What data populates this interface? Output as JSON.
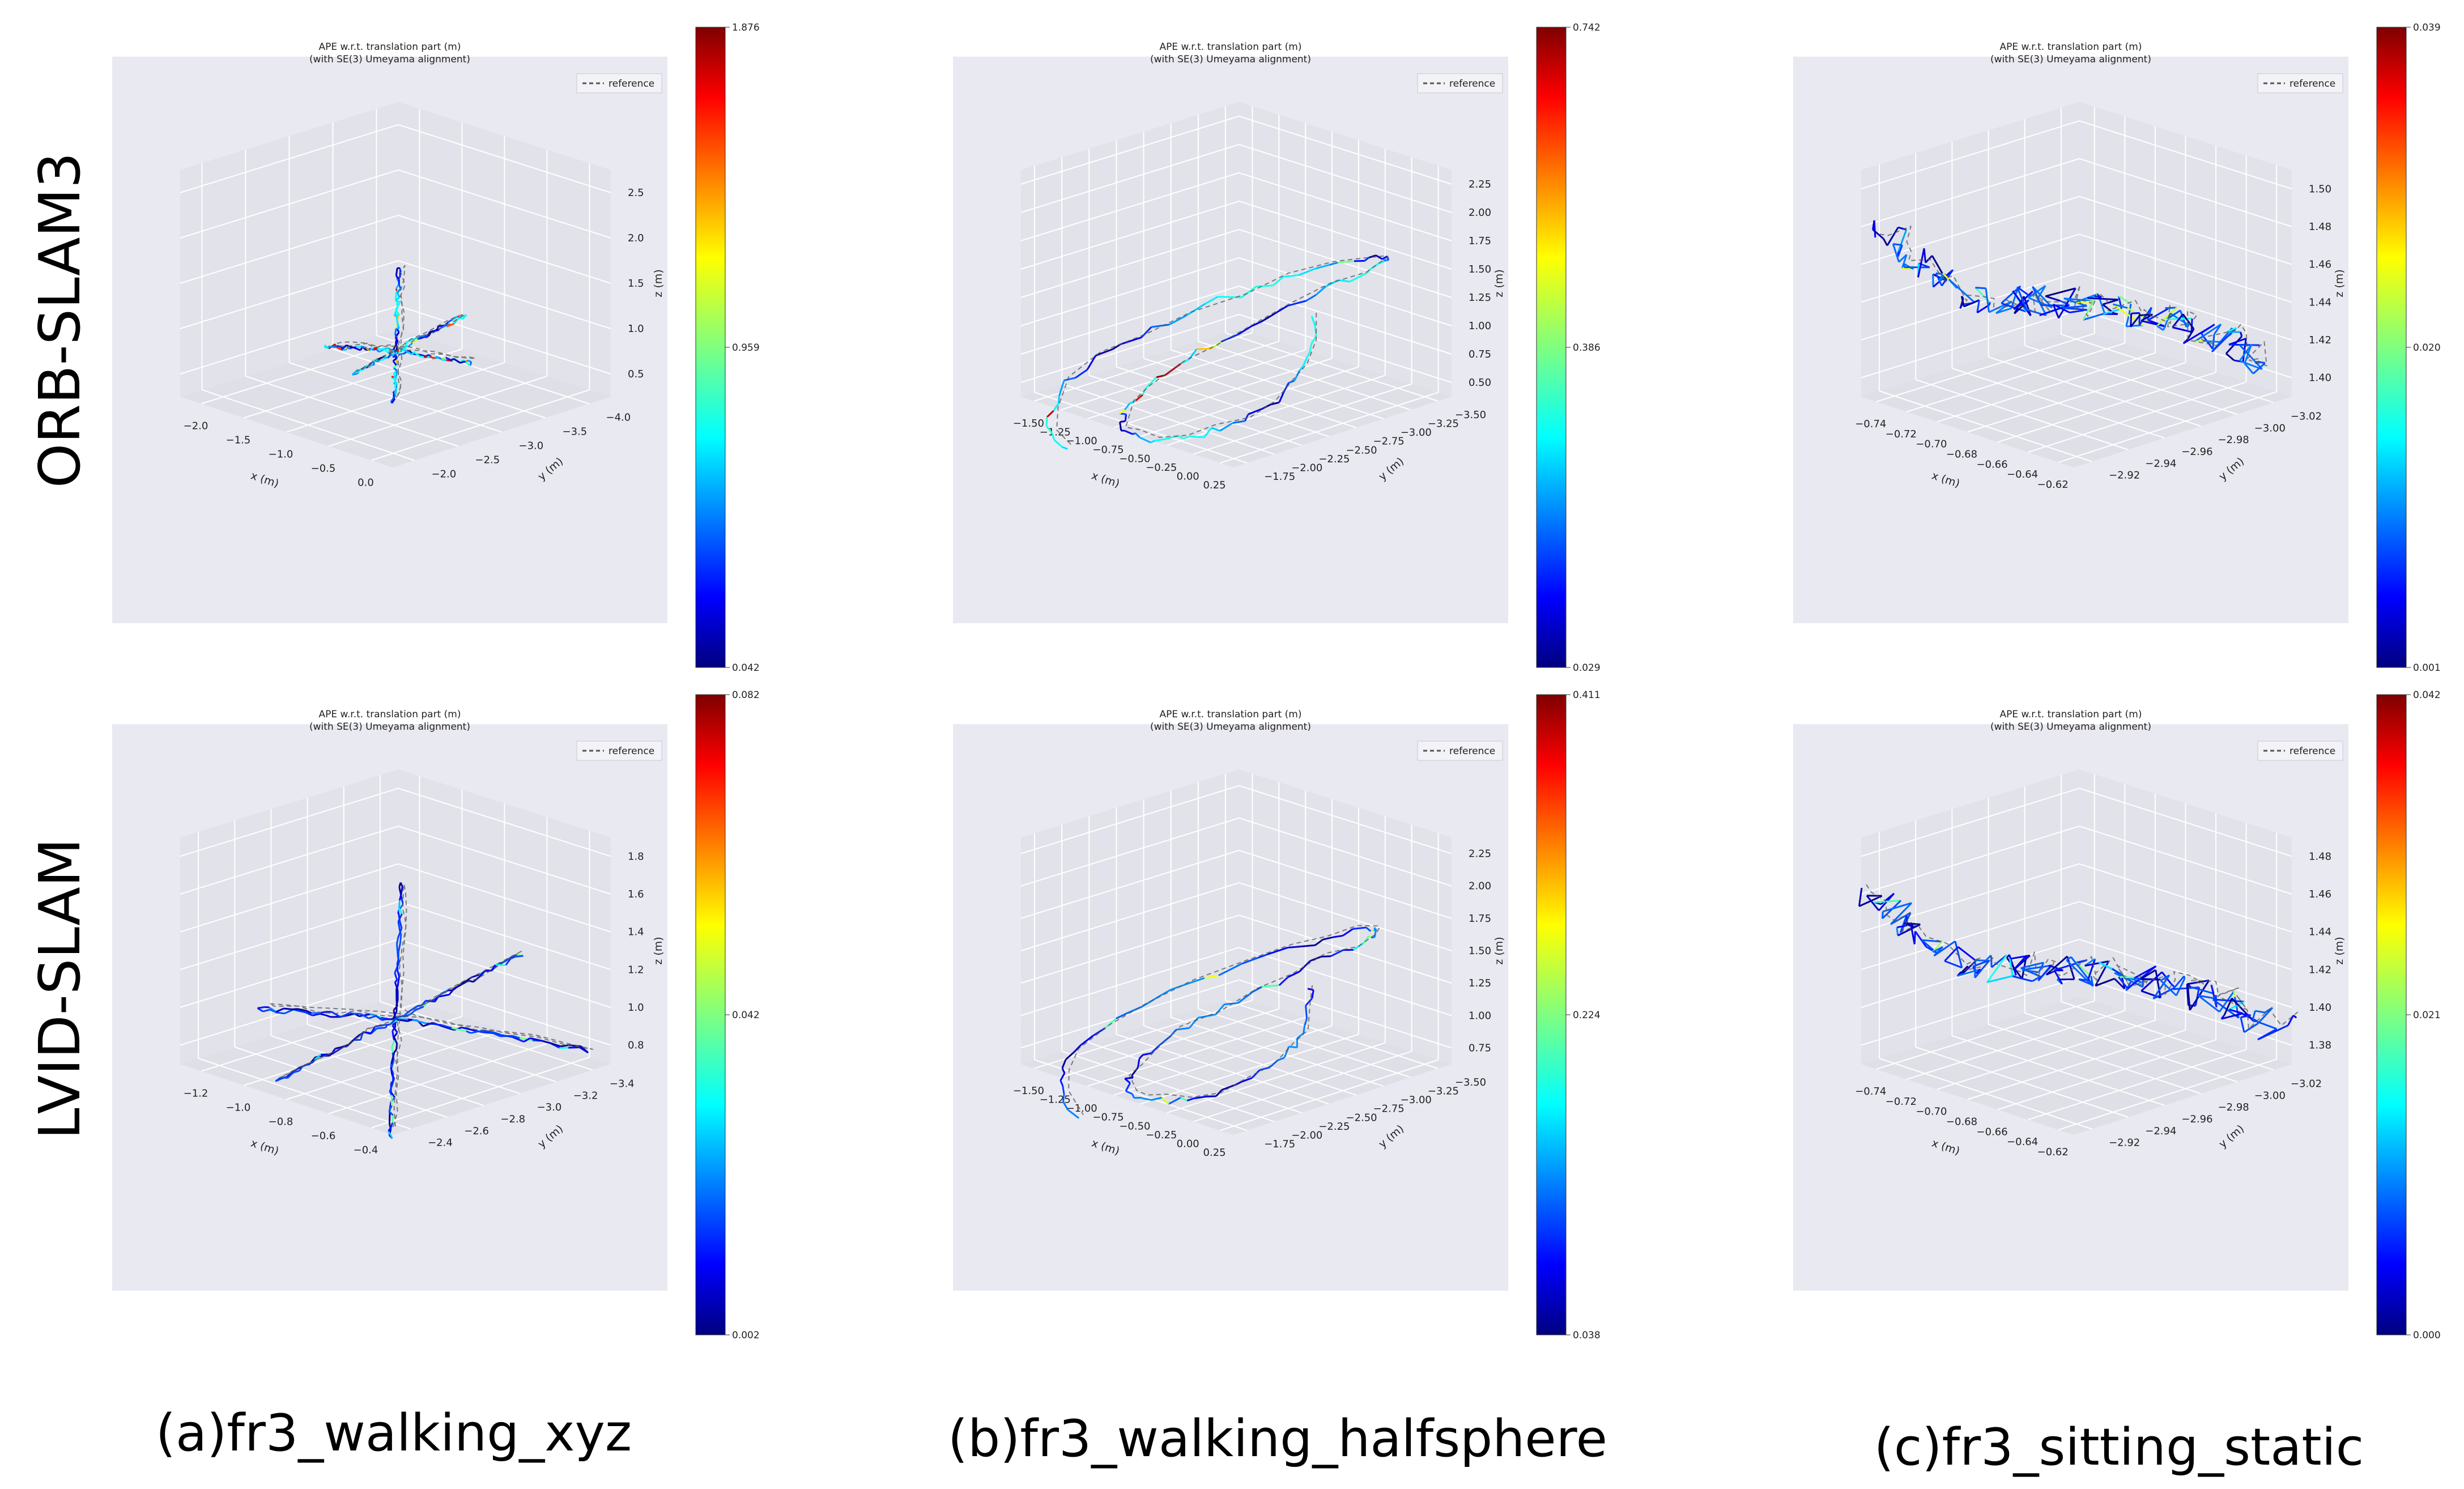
{
  "row_labels": [
    "ORB-SLAM3",
    "LVID-SLAM"
  ],
  "col_labels": [
    "(a)fr3_walking_xyz",
    "(b)fr3_walking_halfsphere",
    "(c)fr3_sitting_static"
  ],
  "colors": {
    "panel_bg": "#e9e9f1",
    "pane_side": "#e2e2ea",
    "pane_floor": "#dfdfe8",
    "grid": "#ffffff",
    "reference": "#555555"
  },
  "chart_data": [
    {
      "id": "orb-xyz",
      "type": "3d-trajectory",
      "title_line1": "APE w.r.t. translation part (m)",
      "title_line2": "(with SE(3) Umeyama alignment)",
      "legend": "reference",
      "xlabel": "x (m)",
      "ylabel": "y (m)",
      "zlabel": "z (m)",
      "x_ticks": [
        "−2.0",
        "−1.5",
        "−1.0",
        "−0.5",
        "0.0"
      ],
      "y_ticks": [
        "−2.0",
        "−2.5",
        "−3.0",
        "−3.5",
        "−4.0"
      ],
      "z_ticks": [
        "0.5",
        "1.0",
        "1.5",
        "2.0",
        "2.5"
      ],
      "colorbar": [
        "1.876",
        "0.959",
        "0.042"
      ],
      "shape": "star",
      "spread": 0.22,
      "max_err_frac": 0.85,
      "seed": 11
    },
    {
      "id": "orb-half",
      "type": "3d-trajectory",
      "title_line1": "APE w.r.t. translation part (m)",
      "title_line2": "(with SE(3) Umeyama alignment)",
      "legend": "reference",
      "xlabel": "x (m)",
      "ylabel": "y (m)",
      "zlabel": "z (m)",
      "x_ticks": [
        "−1.50",
        "−1.25",
        "−1.00",
        "−0.75",
        "−0.50",
        "−0.25",
        "0.00",
        "0.25"
      ],
      "y_ticks": [
        "−1.75",
        "−2.00",
        "−2.25",
        "−2.50",
        "−2.75",
        "−3.00",
        "−3.25",
        "−3.50"
      ],
      "z_ticks": [
        "0.50",
        "0.75",
        "1.00",
        "1.25",
        "1.50",
        "1.75",
        "2.00",
        "2.25"
      ],
      "colorbar": [
        "0.742",
        "0.386",
        "0.029"
      ],
      "shape": "sphere",
      "spread": 0.38,
      "max_err_frac": 0.9,
      "seed": 23
    },
    {
      "id": "orb-static",
      "type": "3d-trajectory",
      "title_line1": "APE w.r.t. translation part (m)",
      "title_line2": "(with SE(3) Umeyama alignment)",
      "legend": "reference",
      "xlabel": "x (m)",
      "ylabel": "y (m)",
      "zlabel": "z (m)",
      "x_ticks": [
        "−0.74",
        "−0.72",
        "−0.70",
        "−0.68",
        "−0.66",
        "−0.64",
        "−0.62"
      ],
      "y_ticks": [
        "−2.92",
        "−2.94",
        "−2.96",
        "−2.98",
        "−3.00",
        "−3.02"
      ],
      "z_ticks": [
        "1.40",
        "1.42",
        "1.44",
        "1.46",
        "1.48",
        "1.50"
      ],
      "colorbar": [
        "0.039",
        "0.020",
        "0.001"
      ],
      "shape": "jitter",
      "spread": 0.42,
      "max_err_frac": 0.55,
      "seed": 37
    },
    {
      "id": "lvid-xyz",
      "type": "3d-trajectory",
      "title_line1": "APE w.r.t. translation part (m)",
      "title_line2": "(with SE(3) Umeyama alignment)",
      "legend": "reference",
      "xlabel": "x (m)",
      "ylabel": "y (m)",
      "zlabel": "z (m)",
      "x_ticks": [
        "−1.2",
        "−1.0",
        "−0.8",
        "−0.6",
        "−0.4"
      ],
      "y_ticks": [
        "−2.4",
        "−2.6",
        "−2.8",
        "−3.0",
        "−3.2",
        "−3.4"
      ],
      "z_ticks": [
        "0.8",
        "1.0",
        "1.2",
        "1.4",
        "1.6",
        "1.8"
      ],
      "colorbar": [
        "0.082",
        "0.042",
        "0.002"
      ],
      "shape": "star",
      "spread": 0.42,
      "max_err_frac": 0.45,
      "seed": 5
    },
    {
      "id": "lvid-half",
      "type": "3d-trajectory",
      "title_line1": "APE w.r.t. translation part (m)",
      "title_line2": "(with SE(3) Umeyama alignment)",
      "legend": "reference",
      "xlabel": "x (m)",
      "ylabel": "y (m)",
      "zlabel": "z (m)",
      "x_ticks": [
        "−1.50",
        "−1.25",
        "−1.00",
        "−0.75",
        "−0.50",
        "−0.25",
        "0.00",
        "0.25"
      ],
      "y_ticks": [
        "−1.75",
        "−2.00",
        "−2.25",
        "−2.50",
        "−2.75",
        "−3.00",
        "−3.25",
        "−3.50"
      ],
      "z_ticks": [
        "0.75",
        "1.00",
        "1.25",
        "1.50",
        "1.75",
        "2.00",
        "2.25"
      ],
      "colorbar": [
        "0.411",
        "0.224",
        "0.038"
      ],
      "shape": "sphere",
      "spread": 0.36,
      "max_err_frac": 0.6,
      "seed": 41
    },
    {
      "id": "lvid-static",
      "type": "3d-trajectory",
      "title_line1": "APE w.r.t. translation part (m)",
      "title_line2": "(with SE(3) Umeyama alignment)",
      "legend": "reference",
      "xlabel": "x (m)",
      "ylabel": "y (m)",
      "zlabel": "z (m)",
      "x_ticks": [
        "−0.74",
        "−0.72",
        "−0.70",
        "−0.68",
        "−0.66",
        "−0.64",
        "−0.62"
      ],
      "y_ticks": [
        "−2.92",
        "−2.94",
        "−2.96",
        "−2.98",
        "−3.00",
        "−3.02"
      ],
      "z_ticks": [
        "1.38",
        "1.40",
        "1.42",
        "1.44",
        "1.46",
        "1.48"
      ],
      "colorbar": [
        "0.042",
        "0.021",
        "0.000"
      ],
      "shape": "jitter",
      "spread": 0.45,
      "max_err_frac": 0.5,
      "seed": 53
    }
  ]
}
